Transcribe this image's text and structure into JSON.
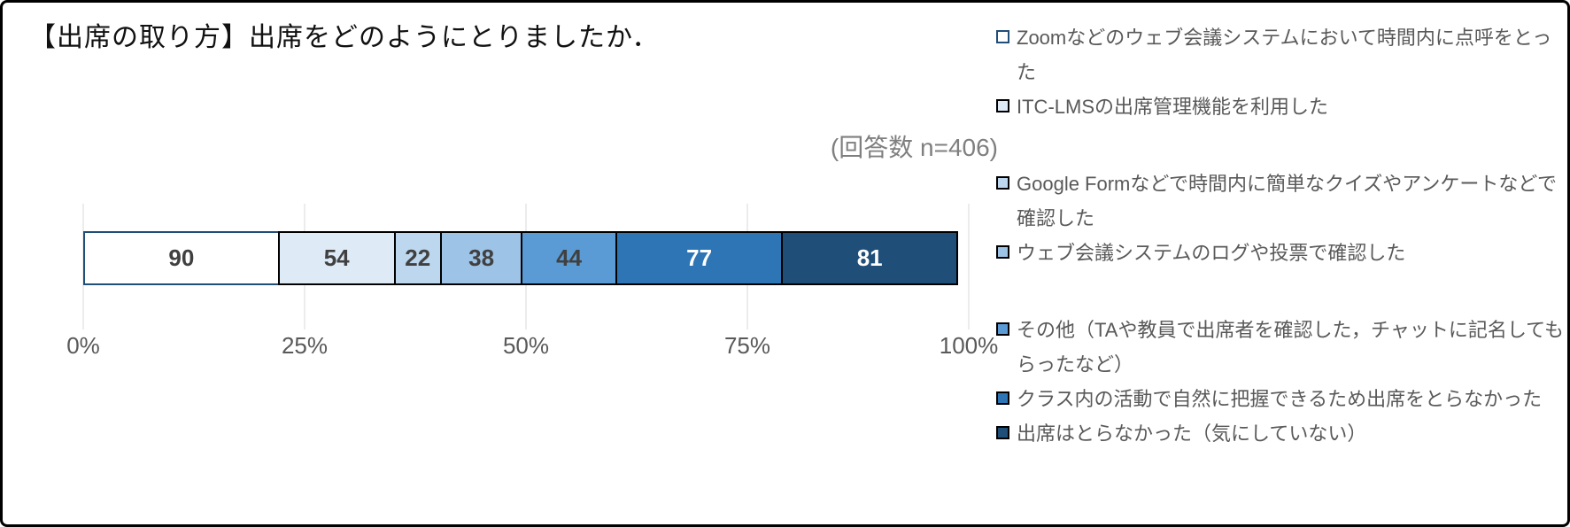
{
  "title": "【出席の取り方】出席をどのようにとりましたか．",
  "n_label": "(回答数 n=406)",
  "chart_data": {
    "type": "bar",
    "subtype": "stacked-horizontal",
    "title": "【出席の取り方】出席をどのようにとりましたか．",
    "annotation": "(回答数 n=406)",
    "total": 406,
    "xlabel": "",
    "ylabel": "",
    "xlim": [
      0,
      100
    ],
    "x_ticks": [
      "0%",
      "25%",
      "50%",
      "75%",
      "100%"
    ],
    "grid": true,
    "legend_position": "right",
    "series": [
      {
        "name": "Zoomなどのウェブ会議システムにおいて時間内に点呼をとった",
        "value": 90,
        "fill": "#FFFFFF",
        "border": "#1F4E79",
        "label_color": "#404040"
      },
      {
        "name": "ITC-LMSの出席管理機能を利用した",
        "value": 54,
        "fill": "#DEEBF7",
        "border": "#000000",
        "label_color": "#404040"
      },
      {
        "name": "Google Formなどで時間内に簡単なクイズやアンケートなどで確認した",
        "value": 22,
        "fill": "#BDD7EE",
        "border": "#000000",
        "label_color": "#404040"
      },
      {
        "name": "ウェブ会議システムのログや投票で確認した",
        "value": 38,
        "fill": "#9DC3E6",
        "border": "#000000",
        "label_color": "#404040"
      },
      {
        "name": "その他（TAや教員で出席者を確認した，チャットに記名してもらったなど）",
        "value": 44,
        "fill": "#5B9BD5",
        "border": "#000000",
        "label_color": "#404040"
      },
      {
        "name": "クラス内の活動で自然に把握できるため出席をとらなかった",
        "value": 77,
        "fill": "#2E75B6",
        "border": "#000000",
        "label_color": "#FFFFFF"
      },
      {
        "name": "出席はとらなかった（気にしていない）",
        "value": 81,
        "fill": "#1F4E79",
        "border": "#000000",
        "label_color": "#FFFFFF"
      }
    ],
    "colors": {
      "gridline": "#D9D9D9",
      "axis_text": "#595959",
      "legend_text": "#595959",
      "annotation_text": "#7F7F7F",
      "title_text": "#111111"
    }
  }
}
